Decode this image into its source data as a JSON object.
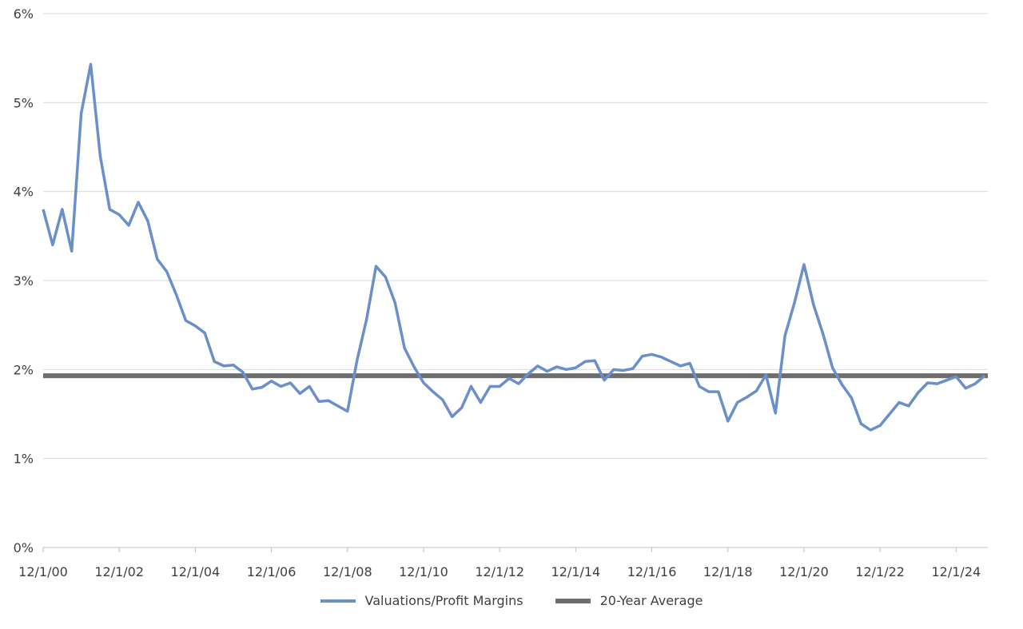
{
  "chart_data": {
    "type": "line",
    "ylim": [
      0,
      6
    ],
    "y_tick_labels": [
      "0%",
      "1%",
      "2%",
      "3%",
      "4%",
      "5%",
      "6%"
    ],
    "y_tick_values": [
      0,
      1,
      2,
      3,
      4,
      5,
      6
    ],
    "x_tick_labels": [
      "12/1/00",
      "12/1/02",
      "12/1/04",
      "12/1/06",
      "12/1/08",
      "12/1/10",
      "12/1/12",
      "12/1/14",
      "12/1/16",
      "12/1/18",
      "12/1/20",
      "12/1/22",
      "12/1/24"
    ],
    "x_tick_values": [
      2000.917,
      2002.917,
      2004.917,
      2006.917,
      2008.917,
      2010.917,
      2012.917,
      2014.917,
      2016.917,
      2018.917,
      2020.917,
      2022.917,
      2024.917
    ],
    "xlim": [
      2000.917,
      2025.75
    ],
    "grid": "horizontal",
    "legend_position": "bottom",
    "series": [
      {
        "name": "Valuations/Profit Margins",
        "color": "#6b8fc9",
        "x": [
          2000.917,
          2001.167,
          2001.417,
          2001.667,
          2001.917,
          2002.167,
          2002.417,
          2002.667,
          2002.917,
          2003.167,
          2003.417,
          2003.667,
          2003.917,
          2004.167,
          2004.417,
          2004.667,
          2004.917,
          2005.167,
          2005.417,
          2005.667,
          2005.917,
          2006.167,
          2006.417,
          2006.667,
          2006.917,
          2007.167,
          2007.417,
          2007.667,
          2007.917,
          2008.167,
          2008.417,
          2008.667,
          2008.917,
          2009.167,
          2009.417,
          2009.667,
          2009.917,
          2010.167,
          2010.417,
          2010.667,
          2010.917,
          2011.167,
          2011.417,
          2011.667,
          2011.917,
          2012.167,
          2012.417,
          2012.667,
          2012.917,
          2013.167,
          2013.417,
          2013.667,
          2013.917,
          2014.167,
          2014.417,
          2014.667,
          2014.917,
          2015.167,
          2015.417,
          2015.667,
          2015.917,
          2016.167,
          2016.417,
          2016.667,
          2016.917,
          2017.167,
          2017.417,
          2017.667,
          2017.917,
          2018.167,
          2018.417,
          2018.667,
          2018.917,
          2019.167,
          2019.417,
          2019.667,
          2019.917,
          2020.167,
          2020.417,
          2020.667,
          2020.917,
          2021.167,
          2021.417,
          2021.667,
          2021.917,
          2022.167,
          2022.417,
          2022.667,
          2022.917,
          2023.167,
          2023.417,
          2023.667,
          2023.917,
          2024.167,
          2024.417,
          2024.667,
          2024.917,
          2025.167,
          2025.417,
          2025.667
        ],
        "y": [
          3.8,
          3.4,
          3.8,
          3.33,
          4.88,
          5.43,
          4.4,
          3.8,
          3.74,
          3.62,
          3.88,
          3.67,
          3.24,
          3.1,
          2.84,
          2.55,
          2.49,
          2.41,
          2.09,
          2.04,
          2.05,
          1.97,
          1.78,
          1.8,
          1.87,
          1.81,
          1.85,
          1.73,
          1.81,
          1.64,
          1.65,
          1.59,
          1.53,
          2.1,
          2.56,
          3.16,
          3.04,
          2.75,
          2.24,
          2.03,
          1.85,
          1.75,
          1.66,
          1.47,
          1.57,
          1.81,
          1.63,
          1.81,
          1.81,
          1.9,
          1.84,
          1.95,
          2.04,
          1.98,
          2.03,
          2.0,
          2.02,
          2.09,
          2.1,
          1.88,
          2.0,
          1.99,
          2.01,
          2.15,
          2.17,
          2.14,
          2.09,
          2.04,
          2.07,
          1.81,
          1.75,
          1.75,
          1.42,
          1.63,
          1.69,
          1.76,
          1.94,
          1.51,
          2.38,
          2.75,
          3.18,
          2.73,
          2.4,
          2.02,
          1.83,
          1.68,
          1.39,
          1.32,
          1.37,
          1.5,
          1.63,
          1.59,
          1.74,
          1.85,
          1.84,
          1.88,
          1.92,
          1.79,
          1.84,
          1.93
        ]
      },
      {
        "name": "20-Year Average",
        "color": "#6d6d6d",
        "x": [
          2000.917,
          2025.75
        ],
        "y": [
          1.93,
          1.93
        ]
      }
    ]
  }
}
